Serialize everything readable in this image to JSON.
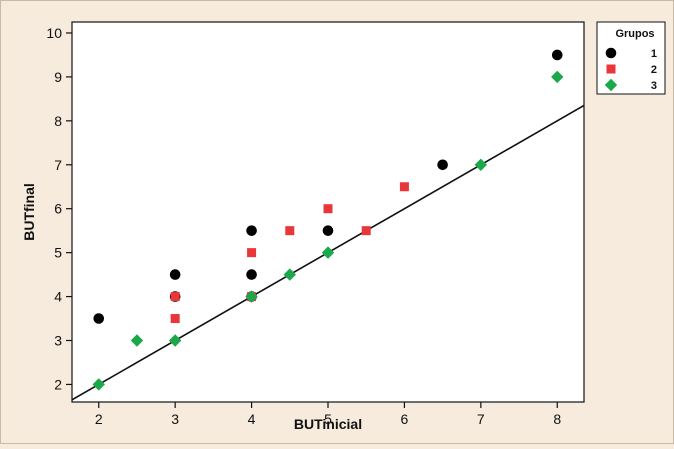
{
  "chart_data": {
    "type": "scatter",
    "title": "",
    "xlabel": "BUTinicial",
    "ylabel": "BUTfinal",
    "xlim": [
      1.65,
      8.35
    ],
    "ylim": [
      1.6,
      10.25
    ],
    "xticks": [
      2,
      3,
      4,
      5,
      6,
      7,
      8
    ],
    "yticks": [
      2,
      3,
      4,
      5,
      6,
      7,
      8,
      9,
      10
    ],
    "grid": false,
    "legend_position": "top-right",
    "legend_title": "Grupos",
    "reference_line": {
      "type": "identity",
      "slope": 1,
      "intercept": 0
    },
    "series": [
      {
        "name": "1",
        "marker": "circle",
        "color": "#000000",
        "points": [
          [
            2,
            3.5
          ],
          [
            3,
            4.5
          ],
          [
            3,
            4.0
          ],
          [
            4,
            5.5
          ],
          [
            4,
            4.5
          ],
          [
            4,
            4.0
          ],
          [
            5,
            5.5
          ],
          [
            6.5,
            7.0
          ],
          [
            8,
            9.5
          ]
        ]
      },
      {
        "name": "2",
        "marker": "square",
        "color": "#e8363a",
        "points": [
          [
            3,
            4.0
          ],
          [
            3,
            3.5
          ],
          [
            4,
            5.0
          ],
          [
            4,
            4.0
          ],
          [
            4.5,
            5.5
          ],
          [
            5,
            6.0
          ],
          [
            5.5,
            5.5
          ],
          [
            6,
            6.5
          ]
        ]
      },
      {
        "name": "3",
        "marker": "diamond",
        "color": "#1aa84a",
        "points": [
          [
            2,
            2.0
          ],
          [
            2.5,
            3.0
          ],
          [
            3,
            3.0
          ],
          [
            4,
            4.0
          ],
          [
            4.5,
            4.5
          ],
          [
            5,
            5.0
          ],
          [
            7,
            7.0
          ],
          [
            8,
            9.0
          ]
        ]
      }
    ]
  }
}
